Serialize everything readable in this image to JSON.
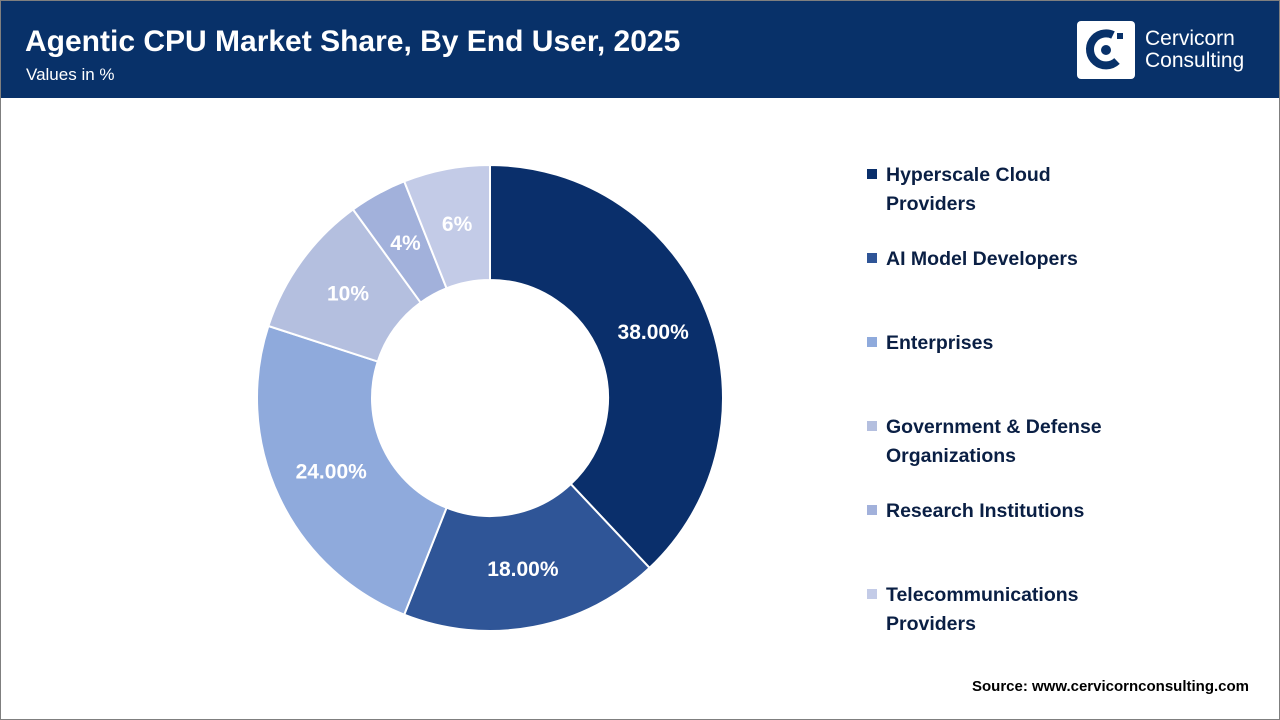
{
  "chart_data": {
    "type": "donut",
    "title": "Agentic CPU Market Share, By End User, 2025",
    "subtitle": "Values in %",
    "logo_text": [
      "Cervicorn",
      "Consulting"
    ],
    "source": "Source: www.cervicornconsulting.com",
    "categories": [
      "Hyperscale Cloud Providers",
      "AI Model Developers",
      "Enterprises",
      "Government & Defense Organizations",
      "Research Institutions",
      "Telecommunications Providers"
    ],
    "values": [
      38,
      18,
      24,
      10,
      4,
      6
    ],
    "value_labels": [
      "38.00%",
      "18.00%",
      "24.00%",
      "10%",
      "4%",
      "6%"
    ],
    "colors": [
      "#0a2f6b",
      "#2f5597",
      "#8faadc",
      "#b4bfdf",
      "#a2b1db",
      "#c3cbe7"
    ],
    "legend": "right"
  }
}
